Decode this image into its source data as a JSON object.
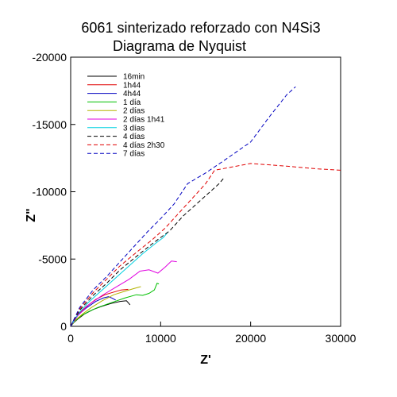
{
  "chart_data": {
    "type": "line",
    "title": "6061 sinterizado reforzado con N4Si3",
    "subtitle": "Diagrama de Nyquist",
    "xlabel": "Z'",
    "ylabel": "Z\"",
    "xlim": [
      0,
      30000
    ],
    "ylim": [
      0,
      -20000
    ],
    "xticks": [
      "0",
      "10000",
      "20000",
      "30000"
    ],
    "yticks": [
      "0",
      "-5000",
      "-10000",
      "-15000",
      "-20000"
    ],
    "legend_position": "top-left",
    "series": [
      {
        "name": "16min",
        "color": "#000000",
        "dash": false,
        "points": [
          [
            0,
            0
          ],
          [
            300,
            -250
          ],
          [
            800,
            -550
          ],
          [
            1500,
            -900
          ],
          [
            2500,
            -1250
          ],
          [
            3500,
            -1500
          ],
          [
            4500,
            -1700
          ],
          [
            5500,
            -1850
          ],
          [
            6200,
            -1900
          ],
          [
            6600,
            -1600
          ]
        ]
      },
      {
        "name": "1h44",
        "color": "#e00000",
        "dash": false,
        "points": [
          [
            0,
            0
          ],
          [
            400,
            -500
          ],
          [
            1000,
            -1000
          ],
          [
            1800,
            -1500
          ],
          [
            2800,
            -2000
          ],
          [
            3800,
            -2350
          ],
          [
            4800,
            -2550
          ],
          [
            5600,
            -2700
          ],
          [
            6400,
            -2750
          ]
        ]
      },
      {
        "name": "4h44",
        "color": "#0000c0",
        "dash": false,
        "points": [
          [
            0,
            0
          ],
          [
            400,
            -550
          ],
          [
            1000,
            -950
          ],
          [
            1800,
            -1400
          ],
          [
            2800,
            -1850
          ],
          [
            3600,
            -2100
          ],
          [
            4200,
            -2200
          ],
          [
            4600,
            -2100
          ],
          [
            5000,
            -1950
          ]
        ]
      },
      {
        "name": "1 día",
        "color": "#00c000",
        "dash": false,
        "points": [
          [
            0,
            0
          ],
          [
            500,
            -400
          ],
          [
            1200,
            -800
          ],
          [
            2000,
            -1100
          ],
          [
            3000,
            -1400
          ],
          [
            4500,
            -1750
          ],
          [
            6000,
            -2100
          ],
          [
            7300,
            -2350
          ],
          [
            8000,
            -2300
          ],
          [
            8700,
            -2450
          ],
          [
            9300,
            -2700
          ],
          [
            9600,
            -3200
          ],
          [
            9800,
            -3150
          ]
        ]
      },
      {
        "name": "2 días",
        "color": "#b3b300",
        "dash": false,
        "points": [
          [
            0,
            0
          ],
          [
            500,
            -450
          ],
          [
            1300,
            -900
          ],
          [
            2300,
            -1400
          ],
          [
            3500,
            -1900
          ],
          [
            4800,
            -2350
          ],
          [
            6000,
            -2600
          ],
          [
            7000,
            -2800
          ],
          [
            7800,
            -2950
          ]
        ]
      },
      {
        "name": "2 días 1h41",
        "color": "#e000e0",
        "dash": false,
        "points": [
          [
            0,
            0
          ],
          [
            800,
            -800
          ],
          [
            2000,
            -1600
          ],
          [
            3500,
            -2300
          ],
          [
            5000,
            -2900
          ],
          [
            6500,
            -3500
          ],
          [
            7700,
            -4100
          ],
          [
            8700,
            -4200
          ],
          [
            9700,
            -3950
          ],
          [
            10500,
            -4400
          ],
          [
            11200,
            -4850
          ],
          [
            11800,
            -4800
          ]
        ]
      },
      {
        "name": "3 días",
        "color": "#00d0e0",
        "dash": false,
        "points": [
          [
            0,
            0
          ],
          [
            800,
            -900
          ],
          [
            2000,
            -1800
          ],
          [
            3500,
            -2700
          ],
          [
            5000,
            -3600
          ],
          [
            6500,
            -4500
          ],
          [
            8000,
            -5400
          ],
          [
            9500,
            -6200
          ],
          [
            10300,
            -6600
          ],
          [
            10800,
            -7000
          ]
        ]
      },
      {
        "name": "4 días",
        "color": "#000000",
        "dash": true,
        "points": [
          [
            0,
            0
          ],
          [
            1000,
            -1200
          ],
          [
            2500,
            -2300
          ],
          [
            4000,
            -3200
          ],
          [
            5500,
            -4200
          ],
          [
            7500,
            -5300
          ],
          [
            9000,
            -6100
          ],
          [
            11000,
            -7100
          ],
          [
            12500,
            -8200
          ],
          [
            14500,
            -9400
          ],
          [
            16500,
            -10600
          ],
          [
            17000,
            -11000
          ]
        ]
      },
      {
        "name": "4 días 2h30",
        "color": "#e00000",
        "dash": true,
        "points": [
          [
            0,
            0
          ],
          [
            1000,
            -1300
          ],
          [
            2500,
            -2500
          ],
          [
            4000,
            -3500
          ],
          [
            5500,
            -4500
          ],
          [
            7500,
            -5600
          ],
          [
            9000,
            -6400
          ],
          [
            10500,
            -7300
          ],
          [
            12000,
            -8400
          ],
          [
            13500,
            -9500
          ],
          [
            15000,
            -10600
          ],
          [
            16000,
            -11600
          ],
          [
            20000,
            -12100
          ],
          [
            24000,
            -11900
          ],
          [
            27500,
            -11700
          ],
          [
            30000,
            -11600
          ]
        ]
      },
      {
        "name": "7 días",
        "color": "#0000c0",
        "dash": true,
        "points": [
          [
            0,
            0
          ],
          [
            1000,
            -1400
          ],
          [
            2500,
            -2700
          ],
          [
            4000,
            -3700
          ],
          [
            5500,
            -4800
          ],
          [
            7000,
            -5900
          ],
          [
            8500,
            -7000
          ],
          [
            10000,
            -8000
          ],
          [
            11500,
            -9100
          ],
          [
            13000,
            -10600
          ],
          [
            15000,
            -11400
          ],
          [
            17000,
            -12300
          ],
          [
            20000,
            -13700
          ],
          [
            22000,
            -15500
          ],
          [
            24000,
            -17200
          ],
          [
            25000,
            -17800
          ]
        ]
      }
    ]
  }
}
